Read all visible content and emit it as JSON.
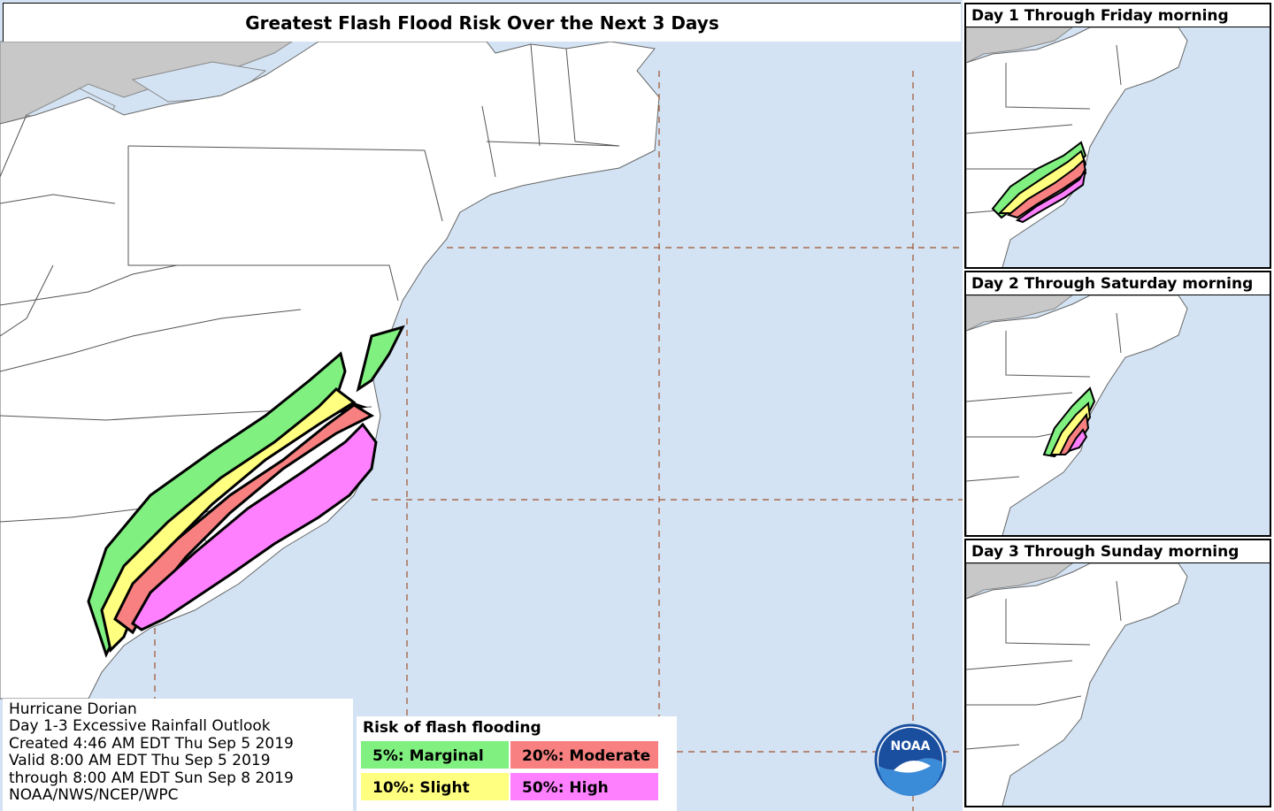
{
  "title": "Greatest Flash Flood Risk Over the Next 3 Days",
  "info": {
    "line1": "Hurricane Dorian",
    "line2": "Day 1-3 Excessive Rainfall Outlook",
    "line3": "Created 4:46 AM EDT Thu Sep 5 2019",
    "line4": "Valid 8:00 AM EDT Thu Sep 5 2019",
    "line5": "through 8:00 AM EDT Sun Sep 8 2019",
    "line6": "NOAA/NWS/NCEP/WPC"
  },
  "legend": {
    "title": "Risk of flash flooding",
    "items": [
      {
        "label": "5%: Marginal",
        "color": "#80f080"
      },
      {
        "label": "20%: Moderate",
        "color": "#f88080"
      },
      {
        "label": "10%: Slight",
        "color": "#ffff80"
      },
      {
        "label": "50%: High",
        "color": "#ff80ff"
      }
    ]
  },
  "insets": [
    {
      "title": "Day 1 Through Friday morning"
    },
    {
      "title": "Day 2 Through Saturday morning"
    },
    {
      "title": "Day 3 Through Sunday morning"
    }
  ],
  "logo": {
    "text": "NOAA",
    "icon": "noaa-logo-icon"
  },
  "colors": {
    "ocean": "#d3e3f3",
    "land": "#ffffff",
    "canada": "#c8c8c8",
    "marginal": "#80f080",
    "slight": "#ffff80",
    "moderate": "#f88080",
    "high": "#ff80ff",
    "grid": "#a0522d"
  }
}
